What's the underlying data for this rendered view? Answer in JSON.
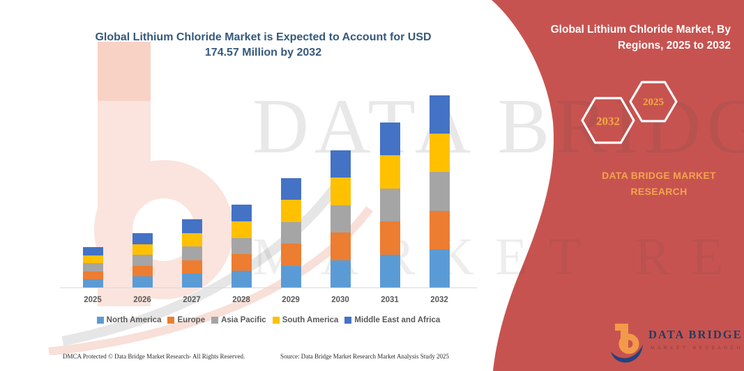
{
  "colors": {
    "accent_red": "#C75350",
    "title_blue": "#35597C",
    "axis_label_gray": "#595959",
    "panel_text_orange": "#F2A54D",
    "hexagon_number_orange": "#F0AC40",
    "logo_navy": "#243B5E",
    "logo_tagline_red": "#93413B"
  },
  "chart_title": {
    "line1": "Global Lithium Chloride Market is Expected to Account for USD",
    "line2": "174.57 Million by 2032"
  },
  "chart_data": {
    "type": "bar",
    "stacked": true,
    "title": "Global Lithium Chloride Market is Expected to Account for USD 174.57 Million by 2032",
    "unit": "USD Million",
    "categories": [
      "2025",
      "2026",
      "2027",
      "2028",
      "2029",
      "2030",
      "2031",
      "2032"
    ],
    "series": [
      {
        "name": "North America",
        "color": "#5B9BD5",
        "values": [
          7.34,
          9.86,
          12.4,
          15.06,
          19.86,
          24.92,
          29.98,
          34.91
        ]
      },
      {
        "name": "Europe",
        "color": "#ED7D31",
        "values": [
          7.34,
          9.86,
          12.4,
          15.06,
          19.86,
          24.92,
          29.98,
          34.91
        ]
      },
      {
        "name": "Asia Pacific",
        "color": "#A5A5A5",
        "values": [
          7.34,
          9.86,
          12.4,
          15.06,
          19.86,
          24.92,
          29.98,
          34.91
        ]
      },
      {
        "name": "South America",
        "color": "#FFC000",
        "values": [
          7.34,
          9.86,
          12.4,
          15.06,
          19.86,
          24.92,
          29.98,
          34.91
        ]
      },
      {
        "name": "Middle East and Africa",
        "color": "#4472C4",
        "values": [
          7.34,
          9.86,
          12.4,
          15.06,
          19.86,
          24.92,
          29.98,
          34.91
        ]
      }
    ],
    "totals": [
      36.7,
      49.3,
      62.0,
      75.3,
      99.3,
      124.6,
      149.9,
      174.57
    ],
    "ylim": [
      0,
      180
    ],
    "grid": false,
    "y_axis_shown": false,
    "legend_position": "bottom"
  },
  "footer": {
    "left": "DMCA Protected © Data Bridge Market Research-  All Rights Reserved.",
    "source": "Source: Data Bridge Market Research  Market Analysis Study 2025"
  },
  "panel": {
    "title_line1": "Global Lithium Chloride Market, By",
    "title_line2": "Regions, 2025 to 2032",
    "hexagons": [
      {
        "label": "2032"
      },
      {
        "label": "2025"
      }
    ],
    "brand_line1": "DATA BRIDGE MARKET",
    "brand_line2": "RESEARCH",
    "logo": {
      "name": "DATA BRIDGE",
      "tagline": "MARKET RESEARCH"
    }
  },
  "watermark": {
    "line1": "DATA BRIDGE",
    "line2": "MARKET RESEARCH"
  }
}
